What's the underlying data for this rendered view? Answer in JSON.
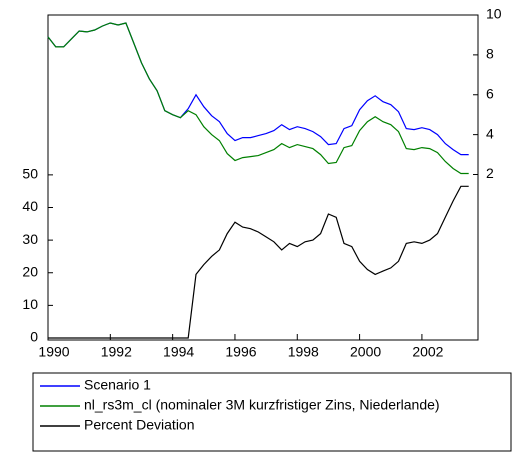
{
  "chart_data": {
    "type": "line",
    "x": [
      1990,
      1990.25,
      1990.5,
      1990.75,
      1991,
      1991.25,
      1991.5,
      1991.75,
      1992,
      1992.25,
      1992.5,
      1992.75,
      1993,
      1993.25,
      1993.5,
      1993.75,
      1994,
      1994.25,
      1994.5,
      1994.75,
      1995,
      1995.25,
      1995.5,
      1995.75,
      1996,
      1996.25,
      1996.5,
      1996.75,
      1997,
      1997.25,
      1997.5,
      1997.75,
      1998,
      1998.25,
      1998.5,
      1998.75,
      1999,
      1999.25,
      1999.5,
      1999.75,
      2000,
      2000.25,
      2000.5,
      2000.75,
      2001,
      2001.25,
      2001.5,
      2001.75,
      2002,
      2002.25,
      2002.5,
      2002.75,
      2003,
      2003.25,
      2003.5
    ],
    "xlim": [
      1990,
      2003.8
    ],
    "xticks": [
      1990,
      1992,
      1994,
      1996,
      1998,
      2000,
      2002
    ],
    "ylim": [
      0,
      99
    ],
    "yticks": [
      0,
      10,
      20,
      30,
      40,
      50
    ],
    "y2lim": [
      -6.2,
      10
    ],
    "y2ticks": [
      2,
      4,
      6,
      8,
      10
    ],
    "series": [
      {
        "name": "Scenario 1",
        "color": "#0000ff",
        "axis": "y2",
        "values": [
          8.9,
          8.4,
          8.4,
          8.8,
          9.2,
          9.15,
          9.25,
          9.45,
          9.6,
          9.5,
          9.6,
          8.6,
          7.6,
          6.8,
          6.2,
          5.2,
          5.0,
          4.85,
          5.3,
          6.0,
          5.4,
          4.95,
          4.65,
          4.05,
          3.7,
          3.85,
          3.85,
          3.95,
          4.05,
          4.2,
          4.5,
          4.25,
          4.4,
          4.3,
          4.15,
          3.9,
          3.5,
          3.55,
          4.3,
          4.45,
          5.25,
          5.7,
          5.95,
          5.65,
          5.5,
          5.15,
          4.3,
          4.25,
          4.35,
          4.25,
          4.0,
          3.55,
          3.25,
          3.0,
          3.0
        ]
      },
      {
        "name": "nl_rs3m_cl (nominaler 3M kurzfristiger Zins, Niederlande)",
        "color": "#008000",
        "axis": "y2",
        "values": [
          8.9,
          8.4,
          8.4,
          8.8,
          9.2,
          9.15,
          9.25,
          9.45,
          9.6,
          9.5,
          9.6,
          8.6,
          7.6,
          6.8,
          6.2,
          5.2,
          5.0,
          4.85,
          5.2,
          5.0,
          4.4,
          4.0,
          3.7,
          3.05,
          2.7,
          2.85,
          2.9,
          2.95,
          3.1,
          3.25,
          3.55,
          3.35,
          3.5,
          3.4,
          3.3,
          3.0,
          2.55,
          2.6,
          3.35,
          3.45,
          4.2,
          4.65,
          4.9,
          4.65,
          4.5,
          4.15,
          3.3,
          3.25,
          3.35,
          3.3,
          3.1,
          2.65,
          2.3,
          2.05,
          2.05
        ]
      },
      {
        "name": "Percent Deviation",
        "color": "#000000",
        "values": [
          0,
          0,
          0,
          0,
          0,
          0,
          0,
          0,
          0,
          0,
          0,
          0,
          0,
          0,
          0,
          0,
          0,
          0,
          0,
          19.5,
          22.5,
          25,
          27,
          32,
          35.5,
          34,
          33.5,
          32.5,
          31,
          29.5,
          27,
          29,
          28,
          29.5,
          30,
          32,
          38,
          37,
          29,
          28,
          23.5,
          21,
          19.5,
          20.5,
          21.5,
          23.5,
          29,
          29.5,
          29,
          30,
          32,
          37,
          42,
          46.5,
          46.5
        ]
      }
    ]
  }
}
